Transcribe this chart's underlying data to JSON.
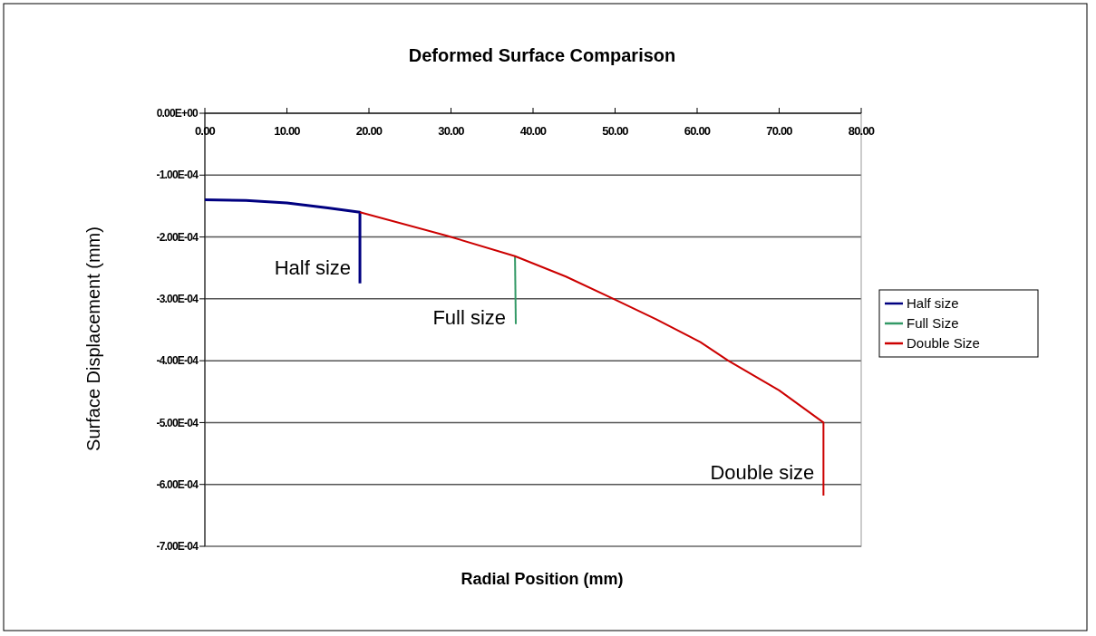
{
  "chart_data": {
    "type": "line",
    "title": "Deformed Surface Comparison",
    "xlabel": "Radial Position (mm)",
    "ylabel": "Surface Displacement (mm)",
    "xlim": [
      0,
      80
    ],
    "xticks": [
      {
        "value": 0,
        "label": "0.00"
      },
      {
        "value": 10,
        "label": "10.00"
      },
      {
        "value": 20,
        "label": "20.00"
      },
      {
        "value": 30,
        "label": "30.00"
      },
      {
        "value": 40,
        "label": "40.00"
      },
      {
        "value": 50,
        "label": "50.00"
      },
      {
        "value": 60,
        "label": "60.00"
      },
      {
        "value": 70,
        "label": "70.00"
      },
      {
        "value": 80,
        "label": "80.00"
      }
    ],
    "ylim": [
      -0.0007,
      0
    ],
    "yticks": [
      {
        "value": 0,
        "label": "0.00E+00"
      },
      {
        "value": -0.0001,
        "label": "-1.00E-04"
      },
      {
        "value": -0.0002,
        "label": "-2.00E-04"
      },
      {
        "value": -0.0003,
        "label": "-3.00E-04"
      },
      {
        "value": -0.0004,
        "label": "-4.00E-04"
      },
      {
        "value": -0.0005,
        "label": "-5.00E-04"
      },
      {
        "value": -0.0006,
        "label": "-6.00E-04"
      },
      {
        "value": -0.0007,
        "label": "-7.00E-04"
      }
    ],
    "grid": "y",
    "legend": "right",
    "marker": "none",
    "line_style": "solid",
    "series": [
      {
        "name": "Half size",
        "color": "#000080",
        "x": [
          0,
          5,
          10,
          15,
          18.9,
          18.9
        ],
        "values": [
          -0.00014,
          -0.000141,
          -0.000145,
          -0.000153,
          -0.00016,
          -0.000275
        ]
      },
      {
        "name": "Full Size",
        "color": "#339966",
        "x": [
          37.8,
          37.9
        ],
        "values": [
          -0.000231,
          -0.000341
        ]
      },
      {
        "name": "Double Size",
        "color": "#cc0000",
        "x": [
          18.9,
          29.5,
          37.8,
          44,
          49.8,
          55,
          60.4,
          63.8,
          70,
          75.4,
          75.4
        ],
        "values": [
          -0.00016,
          -0.000198,
          -0.000231,
          -0.000264,
          -0.0003,
          -0.000333,
          -0.00037,
          -0.0004,
          -0.000448,
          -0.0005,
          -0.000618
        ]
      }
    ],
    "annotations": [
      {
        "text": "Half size",
        "x": 18.9,
        "y": -0.00025
      },
      {
        "text": "Full size",
        "x": 37.8,
        "y": -0.00033
      },
      {
        "text": "Double size",
        "x": 75.4,
        "y": -0.00058
      }
    ]
  }
}
